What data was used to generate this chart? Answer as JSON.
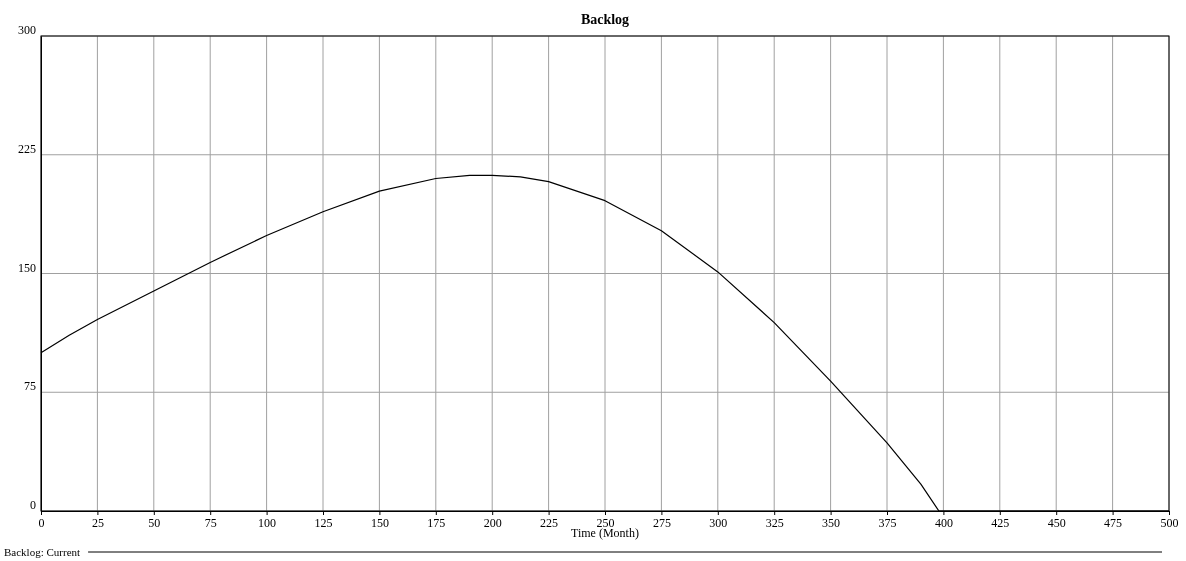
{
  "chart_data": {
    "type": "line",
    "title": "Backlog",
    "xlabel": "Time (Month)",
    "x": [
      0,
      12.5,
      25,
      50,
      75,
      100,
      125,
      150,
      175,
      190,
      200,
      212.5,
      225,
      250,
      275,
      300,
      325,
      350,
      375,
      390,
      398,
      400,
      425,
      450,
      475,
      500
    ],
    "series": [
      {
        "name": "Backlog: Current",
        "color": "#000000",
        "values": [
          100,
          111,
          121,
          139,
          157,
          174,
          189,
          202,
          210,
          212,
          212,
          211,
          208,
          196,
          177,
          151,
          119,
          82,
          43,
          17,
          0,
          0,
          0,
          0,
          0,
          0
        ]
      }
    ],
    "xlim": [
      0,
      500
    ],
    "xticks": [
      0,
      25,
      50,
      75,
      100,
      125,
      150,
      175,
      200,
      225,
      250,
      275,
      300,
      325,
      350,
      375,
      400,
      425,
      450,
      475,
      500
    ],
    "ylim": [
      0,
      300
    ],
    "yticks": [
      0,
      75,
      150,
      225,
      300
    ],
    "grid": true,
    "legend": "bottom",
    "marker": "none",
    "line_style": "solid"
  }
}
